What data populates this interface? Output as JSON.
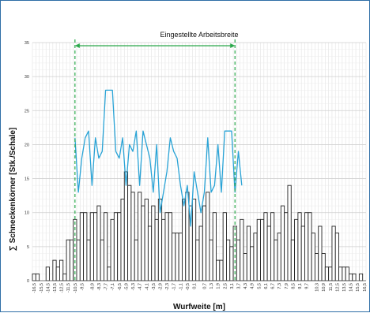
{
  "chart_data": {
    "type": "bar",
    "xlabel": "Wurfweite [m]",
    "ylabel": "∑ Schneckenkörner [Stk./Schale]",
    "ylim": [
      0,
      35
    ],
    "yticks": [
      0,
      5,
      10,
      15,
      20,
      25,
      30,
      35
    ],
    "grid": true,
    "x_tick_labels": [
      "-16,5",
      "-15,5",
      "-14,5",
      "-13,5",
      "-12,5",
      "-11,5",
      "-10,5",
      "-9,5",
      "-8,9",
      "-8,3",
      "-7,7",
      "-7,1",
      "-6,5",
      "-5,9",
      "-5,3",
      "-4,7",
      "-4,1",
      "-3,5",
      "-2,9",
      "-2,3",
      "-1,7",
      "-1,1",
      "-0,5",
      "0,1",
      "0,7",
      "1,3",
      "1,9",
      "2,5",
      "3,1",
      "3,7",
      "4,3",
      "4,9",
      "5,5",
      "6,1",
      "6,7",
      "7,3",
      "7,9",
      "8,5",
      "9,1",
      "9,7",
      "10,3",
      "10,9",
      "11,5",
      "12,5",
      "13,5",
      "14,5",
      "15,5",
      "16,5"
    ],
    "annotation": "Eingestellte Arbeitsbreite",
    "working_width_bins": [
      12,
      59
    ],
    "bar_color": "#ffffff",
    "bar_edge_color": "#222222",
    "line_color": "#29a3d6",
    "guide_color": "#2aa84a",
    "series": [
      {
        "type": "bar",
        "values": [
          1,
          1,
          0,
          0,
          2,
          0,
          3,
          2,
          3,
          1,
          6,
          6,
          9,
          6,
          10,
          10,
          6,
          10,
          10,
          11,
          6,
          10,
          2,
          9,
          10,
          10,
          12,
          16,
          14,
          13,
          6,
          13,
          11,
          12,
          8,
          11,
          9,
          12,
          9,
          10,
          10,
          7,
          7,
          7,
          12,
          13,
          11,
          12,
          6,
          8,
          11,
          13,
          6,
          10,
          3,
          3,
          10,
          6,
          5,
          8,
          6,
          9,
          4,
          8,
          5,
          7,
          9,
          9,
          10,
          8,
          10,
          6,
          7,
          11,
          10,
          14,
          6,
          9,
          10,
          8,
          10,
          10,
          7,
          4,
          8,
          4,
          2,
          2,
          8,
          7,
          2,
          2,
          2,
          1,
          1,
          0,
          1,
          0
        ]
      },
      {
        "type": "line",
        "start_bin": 12,
        "values": [
          21,
          13,
          18,
          21,
          22,
          14,
          21,
          18,
          19,
          28,
          28,
          28,
          19,
          18,
          21,
          14,
          20,
          19,
          22,
          14,
          22,
          20,
          18,
          13,
          20,
          10,
          13,
          16,
          21,
          19,
          18,
          14,
          11,
          14,
          8,
          16,
          13,
          10,
          13,
          21,
          13,
          14,
          20,
          13,
          22,
          22,
          22,
          13,
          19,
          14
        ]
      }
    ]
  }
}
